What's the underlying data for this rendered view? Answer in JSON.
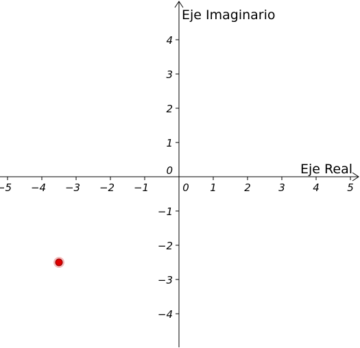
{
  "view": {
    "background": "#ffffff",
    "axis_color": "#000000"
  },
  "chart_data": {
    "type": "scatter",
    "title": "",
    "xlabel": "Eje Real",
    "ylabel": "Eje Imaginario",
    "xlim": [
      -5.2,
      5.0
    ],
    "ylim": [
      -5.0,
      5.0
    ],
    "grid": false,
    "x_ticks": [
      -5,
      -4,
      -3,
      -2,
      -1,
      0,
      1,
      2,
      3,
      4,
      5
    ],
    "y_ticks": [
      -4,
      -3,
      -2,
      -1,
      0,
      1,
      2,
      3,
      4
    ],
    "x_tick_labels": [
      "−5",
      "−4",
      "−3",
      "−2",
      "−1",
      "0",
      "1",
      "2",
      "3",
      "4",
      "5"
    ],
    "y_tick_labels": [
      "−4",
      "−3",
      "−2",
      "−1",
      "0",
      "1",
      "2",
      "3",
      "4"
    ],
    "points": [
      {
        "x": -3.5,
        "y": -2.5,
        "color": "#e00000",
        "halo_color": "#f4b0b0"
      }
    ]
  }
}
